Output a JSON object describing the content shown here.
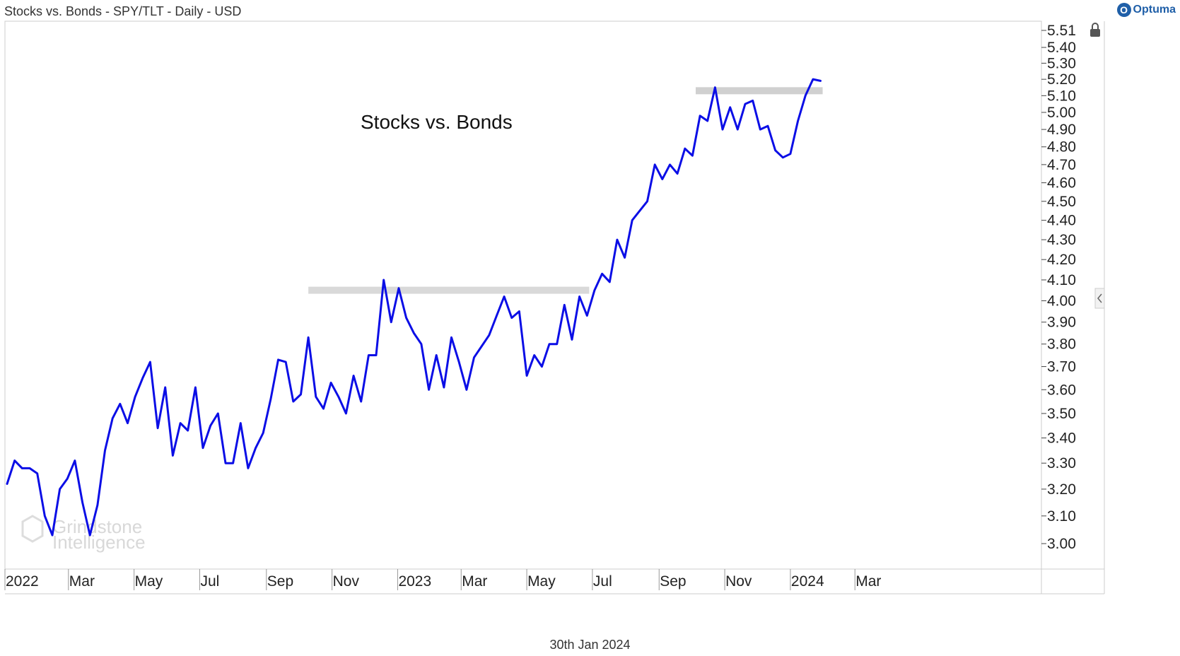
{
  "header": {
    "title": "Stocks vs. Bonds - SPY/TLT - Daily - USD"
  },
  "brand": {
    "name": "Optuma",
    "mark": "O",
    "mark_color": "#1f5fa8"
  },
  "footer": {
    "date": "30th Jan 2024"
  },
  "watermark": {
    "line1": "Grindstone",
    "line2": "Intelligence"
  },
  "icons": {
    "lock": "lock-icon",
    "side_arrow": "chevron-left-icon"
  },
  "chart_data": {
    "type": "line",
    "title": "Stocks vs. Bonds",
    "xlabel": "",
    "ylabel": "",
    "y_scale": "log",
    "ylim": [
      2.95,
      5.56
    ],
    "y_ticks": [
      "5.51",
      "5.40",
      "5.30",
      "5.20",
      "5.10",
      "5.00",
      "4.90",
      "4.80",
      "4.70",
      "4.60",
      "4.50",
      "4.40",
      "4.30",
      "4.20",
      "4.10",
      "4.00",
      "3.90",
      "3.80",
      "3.70",
      "3.60",
      "3.50",
      "3.40",
      "3.30",
      "3.20",
      "3.10",
      "3.00"
    ],
    "x_ticks": [
      "2022",
      "Mar",
      "May",
      "Jul",
      "Sep",
      "Nov",
      "2023",
      "Mar",
      "May",
      "Jul",
      "Sep",
      "Nov",
      "2024",
      "Mar"
    ],
    "x_tick_dates": [
      "2022-01-01",
      "2022-03-01",
      "2022-05-01",
      "2022-07-01",
      "2022-09-01",
      "2022-11-01",
      "2023-01-01",
      "2023-03-01",
      "2023-05-01",
      "2023-07-01",
      "2023-09-01",
      "2023-11-01",
      "2024-01-01",
      "2024-03-01"
    ],
    "line_color": "#0b0ee6",
    "series": [
      {
        "x": [
          "2022-01-03",
          "2022-01-10",
          "2022-01-17",
          "2022-01-24",
          "2022-01-31",
          "2022-02-07",
          "2022-02-14",
          "2022-02-21",
          "2022-02-28",
          "2022-03-07",
          "2022-03-14",
          "2022-03-21",
          "2022-03-28",
          "2022-04-04",
          "2022-04-11",
          "2022-04-18",
          "2022-04-25",
          "2022-05-02",
          "2022-05-09",
          "2022-05-16",
          "2022-05-23",
          "2022-05-30",
          "2022-06-06",
          "2022-06-13",
          "2022-06-20",
          "2022-06-27",
          "2022-07-04",
          "2022-07-11",
          "2022-07-18",
          "2022-07-25",
          "2022-08-01",
          "2022-08-08",
          "2022-08-15",
          "2022-08-22",
          "2022-08-29",
          "2022-09-05",
          "2022-09-12",
          "2022-09-19",
          "2022-09-26",
          "2022-10-03",
          "2022-10-10",
          "2022-10-17",
          "2022-10-24",
          "2022-10-31",
          "2022-11-07",
          "2022-11-14",
          "2022-11-21",
          "2022-11-28",
          "2022-12-05",
          "2022-12-12",
          "2022-12-19",
          "2022-12-26",
          "2023-01-02",
          "2023-01-09",
          "2023-01-16",
          "2023-01-23",
          "2023-01-30",
          "2023-02-06",
          "2023-02-13",
          "2023-02-20",
          "2023-02-27",
          "2023-03-06",
          "2023-03-13",
          "2023-03-20",
          "2023-03-27",
          "2023-04-03",
          "2023-04-10",
          "2023-04-17",
          "2023-04-24",
          "2023-05-01",
          "2023-05-08",
          "2023-05-15",
          "2023-05-22",
          "2023-05-29",
          "2023-06-05",
          "2023-06-12",
          "2023-06-19",
          "2023-06-26",
          "2023-07-03",
          "2023-07-10",
          "2023-07-17",
          "2023-07-24",
          "2023-07-31",
          "2023-08-07",
          "2023-08-14",
          "2023-08-21",
          "2023-08-28",
          "2023-09-04",
          "2023-09-11",
          "2023-09-18",
          "2023-09-25",
          "2023-10-02",
          "2023-10-09",
          "2023-10-16",
          "2023-10-23",
          "2023-10-30",
          "2023-11-06",
          "2023-11-13",
          "2023-11-20",
          "2023-11-27",
          "2023-12-04",
          "2023-12-11",
          "2023-12-18",
          "2023-12-25",
          "2024-01-01",
          "2024-01-08",
          "2024-01-15",
          "2024-01-22",
          "2024-01-29"
        ],
        "values": [
          3.22,
          3.31,
          3.28,
          3.28,
          3.26,
          3.1,
          3.03,
          3.2,
          3.24,
          3.31,
          3.15,
          3.03,
          3.14,
          3.35,
          3.48,
          3.54,
          3.46,
          3.57,
          3.65,
          3.72,
          3.44,
          3.61,
          3.33,
          3.46,
          3.43,
          3.61,
          3.36,
          3.45,
          3.5,
          3.3,
          3.3,
          3.46,
          3.28,
          3.36,
          3.42,
          3.56,
          3.73,
          3.72,
          3.55,
          3.58,
          3.83,
          3.57,
          3.52,
          3.63,
          3.57,
          3.5,
          3.66,
          3.55,
          3.75,
          3.75,
          4.1,
          3.9,
          4.06,
          3.92,
          3.85,
          3.8,
          3.6,
          3.75,
          3.61,
          3.83,
          3.72,
          3.6,
          3.74,
          3.79,
          3.84,
          3.93,
          4.02,
          3.92,
          3.95,
          3.66,
          3.75,
          3.7,
          3.8,
          3.8,
          3.98,
          3.82,
          4.02,
          3.93,
          4.05,
          4.13,
          4.09,
          4.3,
          4.21,
          4.4,
          4.45,
          4.5,
          4.7,
          4.62,
          4.7,
          4.65,
          4.79,
          4.75,
          4.98,
          4.95,
          5.15,
          4.9,
          5.03,
          4.9,
          5.05,
          5.07,
          4.9,
          4.92,
          4.78,
          4.74,
          4.76,
          4.95,
          5.1,
          5.2,
          5.19
        ]
      }
    ],
    "annotations": [
      {
        "type": "horizontal-band",
        "level": 4.05,
        "x_start": "2022-10-10",
        "x_end": "2023-06-28",
        "color": "#d9d9d9"
      },
      {
        "type": "horizontal-band",
        "level": 5.13,
        "x_start": "2023-10-05",
        "x_end": "2024-01-31",
        "color": "#d0d0d0"
      }
    ],
    "grid": false,
    "legend": "none"
  }
}
